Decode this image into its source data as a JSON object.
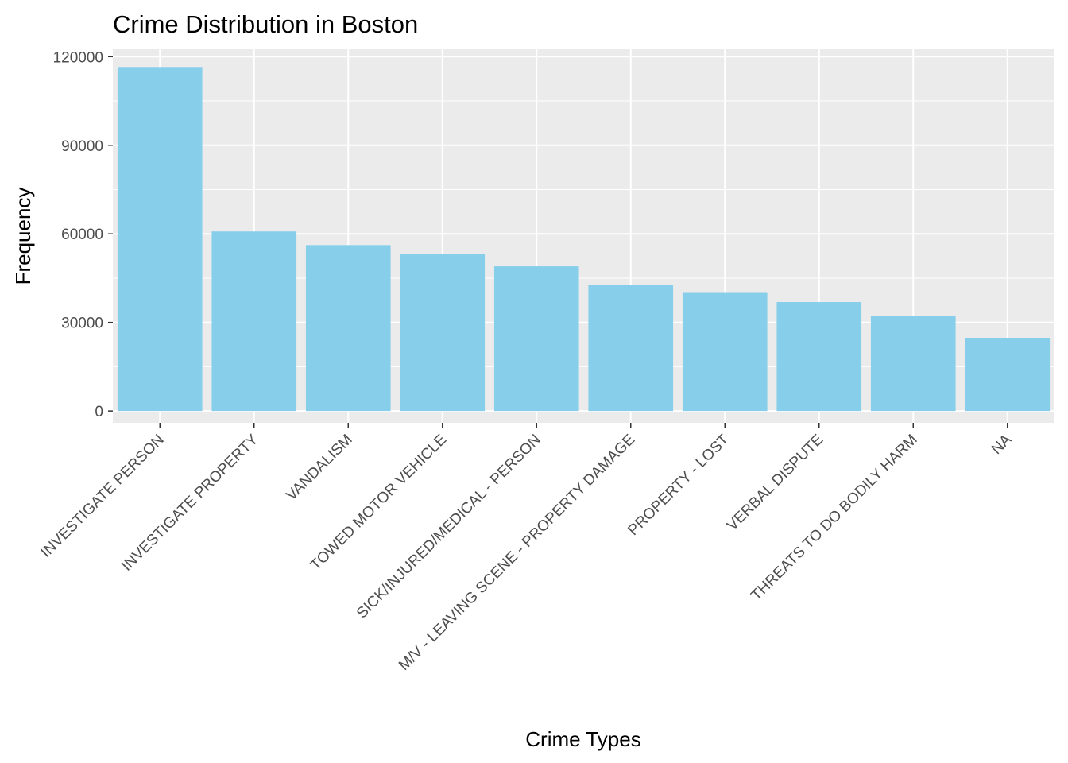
{
  "chart_data": {
    "type": "bar",
    "title": "Crime Distribution in Boston",
    "xlabel": "Crime Types",
    "ylabel": "Frequency",
    "categories": [
      "INVESTIGATE PERSON",
      "INVESTIGATE PROPERTY",
      "VANDALISM",
      "TOWED MOTOR VEHICLE",
      "SICK/INJURED/MEDICAL - PERSON",
      "M/V - LEAVING SCENE - PROPERTY DAMAGE",
      "PROPERTY - LOST",
      "VERBAL DISPUTE",
      "THREATS TO DO BODILY HARM",
      "NA"
    ],
    "values": [
      116500,
      60800,
      56200,
      53100,
      49000,
      42600,
      40000,
      36900,
      32100,
      24800
    ],
    "yticks": [
      0,
      30000,
      60000,
      90000,
      120000
    ],
    "ylim": [
      -4000,
      122500
    ],
    "grid": true,
    "legend": "none",
    "colors": {
      "bar": "#87CEEB",
      "panel": "#EBEBEB",
      "gridline": "#FFFFFF",
      "tick_text": "#4D4D4D",
      "tick_mark": "#333333"
    }
  }
}
